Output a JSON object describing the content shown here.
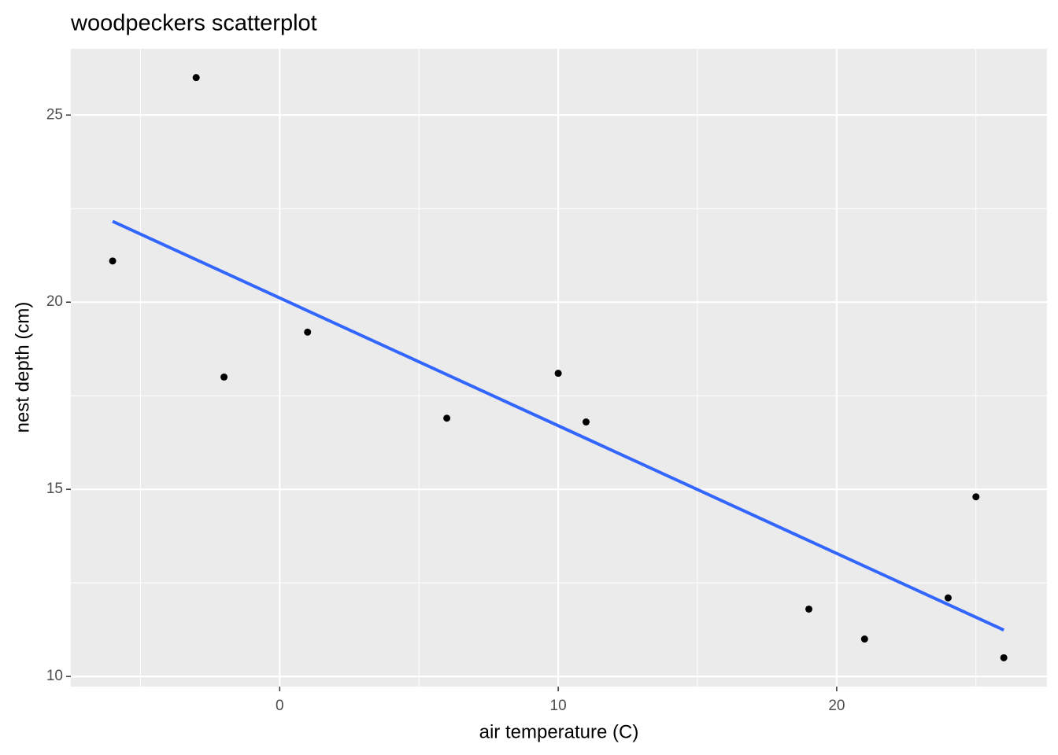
{
  "chart_data": {
    "type": "scatter",
    "title": "woodpeckers scatterplot",
    "x_label": "air temperature (C)",
    "y_label": "nest depth (cm)",
    "series": [
      {
        "x": [
          -6,
          -3,
          -2,
          1,
          6,
          10,
          11,
          19,
          21,
          24,
          25,
          26
        ],
        "values": [
          21.1,
          26.0,
          18.0,
          19.2,
          16.9,
          18.1,
          16.8,
          11.8,
          11.0,
          12.1,
          14.8,
          10.5
        ],
        "color": "#000000"
      }
    ],
    "trend": {
      "x": [
        -6,
        26
      ],
      "values": [
        22.16,
        11.24
      ],
      "color": "#3366ff"
    },
    "xlim": [
      -7.5,
      27.55
    ],
    "ylim": [
      9.73,
      26.77
    ],
    "xticks": [
      0,
      10,
      20
    ],
    "yticks": [
      10,
      15,
      20,
      25
    ],
    "x_minor_grid": [
      -5,
      5,
      15,
      25
    ],
    "y_minor_grid": [
      12.5,
      17.5,
      22.5
    ],
    "grid": true
  }
}
